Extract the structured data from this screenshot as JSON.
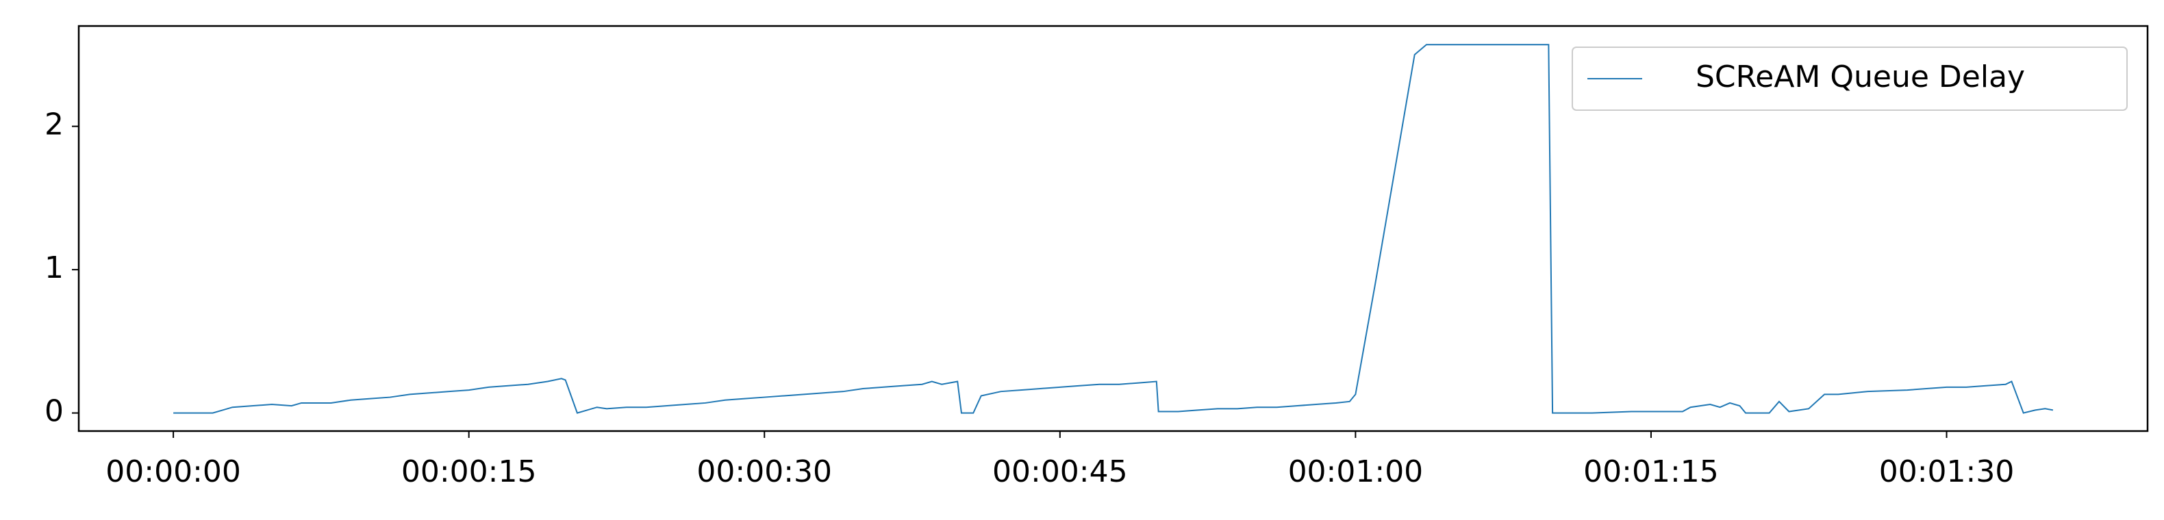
{
  "chart_data": {
    "type": "line",
    "x": [
      0,
      1,
      2,
      2.5,
      3,
      4,
      5,
      6,
      6.5,
      7,
      8,
      9,
      10,
      11,
      12,
      13,
      14,
      15,
      16,
      17,
      18,
      19,
      19.7,
      19.9,
      20.5,
      21,
      21.5,
      22,
      23,
      24,
      25,
      26,
      27,
      28,
      29,
      30,
      31,
      32,
      33,
      34,
      35,
      36,
      37,
      38,
      38.5,
      39,
      39.8,
      40,
      40.6,
      41,
      42,
      43,
      44,
      45,
      46,
      47,
      48,
      49,
      49.9,
      50,
      51,
      52,
      53,
      54,
      55,
      56,
      57,
      58,
      59,
      59.7,
      60,
      61,
      62,
      63,
      63.6,
      65,
      67,
      69.8,
      70,
      72,
      74,
      76.6,
      77,
      78,
      78.5,
      79,
      79.5,
      79.8,
      81,
      81.5,
      82,
      83,
      83.8,
      84.5,
      86,
      88,
      90,
      91,
      92,
      93,
      93.3,
      93.9,
      94.5,
      95,
      95.4
    ],
    "series": [
      {
        "name": "SCReAM Queue Delay",
        "color": "#1f77b4",
        "values": [
          0,
          0,
          0,
          0.02,
          0.04,
          0.05,
          0.06,
          0.05,
          0.07,
          0.07,
          0.07,
          0.09,
          0.1,
          0.11,
          0.13,
          0.14,
          0.15,
          0.16,
          0.18,
          0.19,
          0.2,
          0.22,
          0.24,
          0.23,
          0,
          0.02,
          0.04,
          0.03,
          0.04,
          0.04,
          0.05,
          0.06,
          0.07,
          0.09,
          0.1,
          0.11,
          0.12,
          0.13,
          0.14,
          0.15,
          0.17,
          0.18,
          0.19,
          0.2,
          0.22,
          0.2,
          0.22,
          0,
          0,
          0.12,
          0.15,
          0.16,
          0.17,
          0.18,
          0.19,
          0.2,
          0.2,
          0.21,
          0.22,
          0.01,
          0.01,
          0.02,
          0.03,
          0.03,
          0.04,
          0.04,
          0.05,
          0.06,
          0.07,
          0.08,
          0.13,
          0.9,
          1.7,
          2.5,
          2.57,
          2.57,
          2.57,
          2.57,
          0,
          0,
          0.01,
          0.01,
          0.04,
          0.06,
          0.04,
          0.07,
          0.05,
          0,
          0,
          0.08,
          0.01,
          0.03,
          0.13,
          0.13,
          0.15,
          0.16,
          0.18,
          0.18,
          0.19,
          0.2,
          0.22,
          0,
          0.02,
          0.03,
          0.02
        ]
      }
    ],
    "xlim": [
      -4.8,
      100.2
    ],
    "xticks": [
      {
        "value": 0,
        "label": "00:00:00"
      },
      {
        "value": 15,
        "label": "00:00:15"
      },
      {
        "value": 30,
        "label": "00:00:30"
      },
      {
        "value": 45,
        "label": "00:00:45"
      },
      {
        "value": 60,
        "label": "00:01:00"
      },
      {
        "value": 75,
        "label": "00:01:15"
      },
      {
        "value": 90,
        "label": "00:01:30"
      }
    ],
    "ylim": [
      -0.126,
      2.7
    ],
    "yticks": [
      0,
      1,
      2
    ],
    "legend": "upper right"
  }
}
